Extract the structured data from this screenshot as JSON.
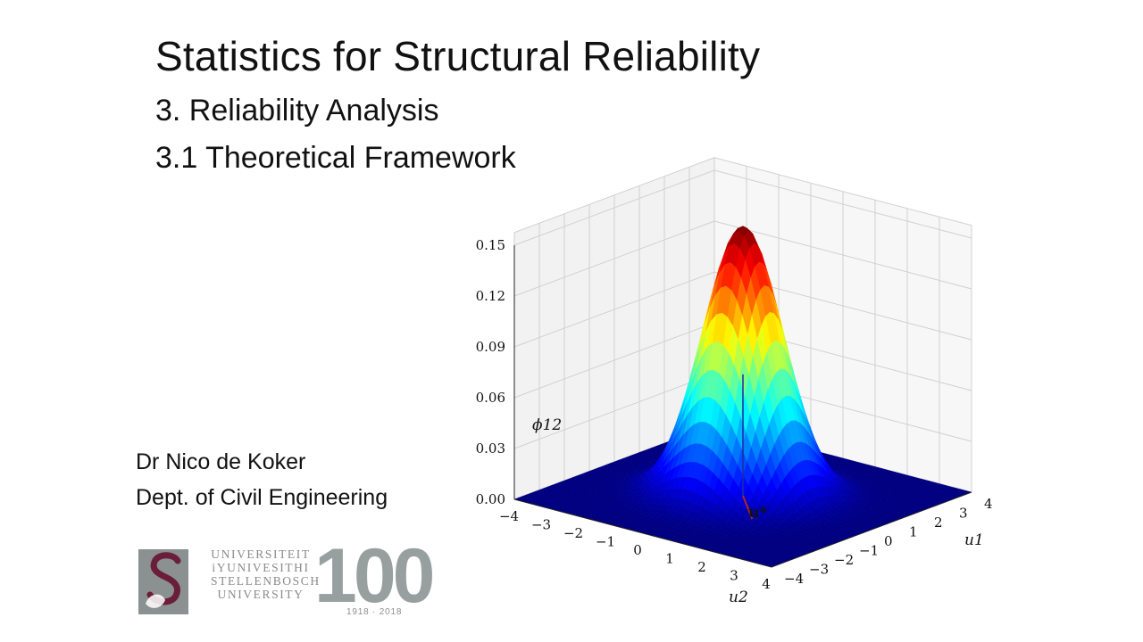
{
  "slide": {
    "title": "Statistics for Structural Reliability",
    "subtitle_1": "3. Reliability Analysis",
    "subtitle_2": "3.1 Theoretical Framework"
  },
  "author": {
    "name": "Dr Nico de Koker",
    "department": "Dept. of Civil Engineering"
  },
  "logo": {
    "words": [
      "UNIVERSITEIT",
      "iYUNIVESITHI",
      "STELLENBOSCH",
      "UNIVERSITY"
    ],
    "centenary": "100",
    "years": "1918 · 2018",
    "colors": {
      "grey": "#8a9190",
      "maroon": "#6b1e3a"
    }
  },
  "chart_data": {
    "type": "surface",
    "surface": "bivariate standard normal density phi_12(u1, u2)",
    "zlabel": "ϕ12",
    "xlabel": "u1",
    "ylabel": "u2",
    "annotation": "u*",
    "z_ticks": [
      "0.00",
      "0.03",
      "0.06",
      "0.09",
      "0.12",
      "0.15"
    ],
    "u1_ticks": [
      "−4",
      "−3",
      "−2",
      "−1",
      "0",
      "1",
      "2",
      "3",
      "4"
    ],
    "u2_ticks": [
      "−4",
      "−3",
      "−2",
      "−1",
      "0",
      "1",
      "2",
      "3",
      "4"
    ],
    "u1_range": [
      -4,
      4
    ],
    "u2_range": [
      -4,
      4
    ],
    "zlim": [
      0,
      0.15
    ],
    "peak_value": 0.159,
    "colormap": "jet",
    "grid": true
  }
}
